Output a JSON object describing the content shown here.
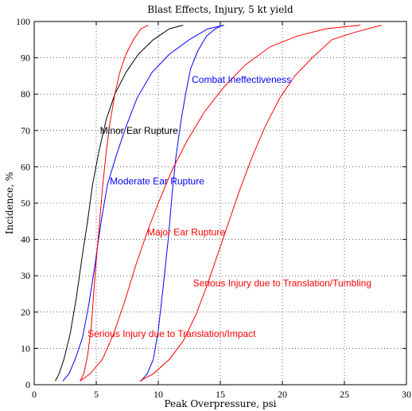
{
  "chart_data": {
    "type": "line",
    "title": "Blast Effects, Injury, 5 kt yield",
    "xlabel": "Peak Overpressure, psi",
    "ylabel": "Incidence, %",
    "xlim": [
      0,
      30
    ],
    "ylim": [
      0,
      100
    ],
    "xticks": [
      "0",
      "5",
      "10",
      "15",
      "20",
      "25",
      "30"
    ],
    "yticks": [
      "0",
      "10",
      "20",
      "30",
      "40",
      "50",
      "60",
      "70",
      "80",
      "90",
      "100"
    ],
    "grid": true,
    "series": [
      {
        "name": "Minor Ear Rupture",
        "color": "#000000",
        "points": [
          [
            1.7,
            1
          ],
          [
            2.0,
            3
          ],
          [
            2.4,
            7
          ],
          [
            2.9,
            14
          ],
          [
            3.4,
            24
          ],
          [
            3.9,
            36
          ],
          [
            4.3,
            45
          ],
          [
            4.7,
            55
          ],
          [
            5.2,
            64
          ],
          [
            5.8,
            73
          ],
          [
            6.5,
            80
          ],
          [
            7.4,
            86
          ],
          [
            8.4,
            91
          ],
          [
            9.6,
            95
          ],
          [
            10.9,
            98
          ],
          [
            12.0,
            99
          ]
        ]
      },
      {
        "name": "Moderate Ear Rupture",
        "color": "#0000ff",
        "points": [
          [
            2.3,
            1
          ],
          [
            2.8,
            3
          ],
          [
            3.3,
            7
          ],
          [
            3.9,
            13
          ],
          [
            4.4,
            22
          ],
          [
            4.9,
            33
          ],
          [
            5.4,
            45
          ],
          [
            5.9,
            55
          ],
          [
            6.6,
            63
          ],
          [
            7.4,
            71
          ],
          [
            8.3,
            79
          ],
          [
            9.5,
            86
          ],
          [
            10.9,
            91
          ],
          [
            12.5,
            95
          ],
          [
            14.0,
            98
          ],
          [
            15.3,
            99
          ]
        ]
      },
      {
        "name": "Serious Injury due to Translation/Impact",
        "color": "#ff0000",
        "points": [
          [
            3.7,
            1
          ],
          [
            4.0,
            3
          ],
          [
            4.3,
            8
          ],
          [
            4.6,
            16
          ],
          [
            4.9,
            30
          ],
          [
            5.2,
            42
          ],
          [
            5.5,
            54
          ],
          [
            5.8,
            64
          ],
          [
            6.1,
            72
          ],
          [
            6.5,
            80
          ],
          [
            6.9,
            86
          ],
          [
            7.4,
            91
          ],
          [
            8.0,
            95
          ],
          [
            8.6,
            98
          ],
          [
            9.2,
            99
          ]
        ]
      },
      {
        "name": "Combat Ineffectiveness",
        "color": "#0000ff",
        "points": [
          [
            8.6,
            1
          ],
          [
            9.1,
            3
          ],
          [
            9.6,
            7
          ],
          [
            10.0,
            15
          ],
          [
            10.4,
            27
          ],
          [
            10.8,
            40
          ],
          [
            11.1,
            52
          ],
          [
            11.4,
            62
          ],
          [
            11.8,
            72
          ],
          [
            12.2,
            80
          ],
          [
            12.6,
            87
          ],
          [
            13.2,
            92
          ],
          [
            13.9,
            96
          ],
          [
            14.6,
            98
          ],
          [
            15.2,
            99
          ]
        ]
      },
      {
        "name": "Major Ear Rupture",
        "color": "#ff0000",
        "points": [
          [
            3.7,
            1
          ],
          [
            4.5,
            3
          ],
          [
            5.5,
            7
          ],
          [
            6.4,
            14
          ],
          [
            7.3,
            23
          ],
          [
            8.2,
            33
          ],
          [
            9.1,
            42
          ],
          [
            10.0,
            50
          ],
          [
            11.1,
            59
          ],
          [
            12.3,
            67
          ],
          [
            13.7,
            75
          ],
          [
            15.3,
            82
          ],
          [
            17.0,
            88
          ],
          [
            19.0,
            93
          ],
          [
            21.2,
            96
          ],
          [
            23.5,
            98
          ],
          [
            26.3,
            99
          ]
        ]
      },
      {
        "name": "Serious Injury due to Translation/Tumbling",
        "color": "#ff0000",
        "points": [
          [
            8.5,
            1
          ],
          [
            9.6,
            3
          ],
          [
            10.9,
            7
          ],
          [
            12.0,
            12
          ],
          [
            13.0,
            19
          ],
          [
            13.9,
            27
          ],
          [
            14.8,
            36
          ],
          [
            15.7,
            45
          ],
          [
            16.6,
            54
          ],
          [
            17.6,
            63
          ],
          [
            18.6,
            71
          ],
          [
            19.8,
            79
          ],
          [
            21.0,
            85
          ],
          [
            22.4,
            90
          ],
          [
            24.0,
            95
          ],
          [
            25.8,
            97
          ],
          [
            28.0,
            99
          ]
        ]
      }
    ],
    "annotations": [
      {
        "text": "Minor Ear Rupture",
        "x": 5.3,
        "y": 70,
        "color": "#000000"
      },
      {
        "text": "Moderate Ear Rupture",
        "x": 6.1,
        "y": 56,
        "color": "#0000ff"
      },
      {
        "text": "Combat Ineffectiveness",
        "x": 12.7,
        "y": 84,
        "color": "#0000ff"
      },
      {
        "text": "Major Ear Rupture",
        "x": 9.1,
        "y": 42,
        "color": "#ff0000"
      },
      {
        "text": "Serious Injury due to Translation/Tumbling",
        "x": 12.8,
        "y": 28,
        "color": "#ff0000"
      },
      {
        "text": "Serious Injury due to Translation/Impact",
        "x": 4.3,
        "y": 14,
        "color": "#ff0000"
      }
    ]
  }
}
